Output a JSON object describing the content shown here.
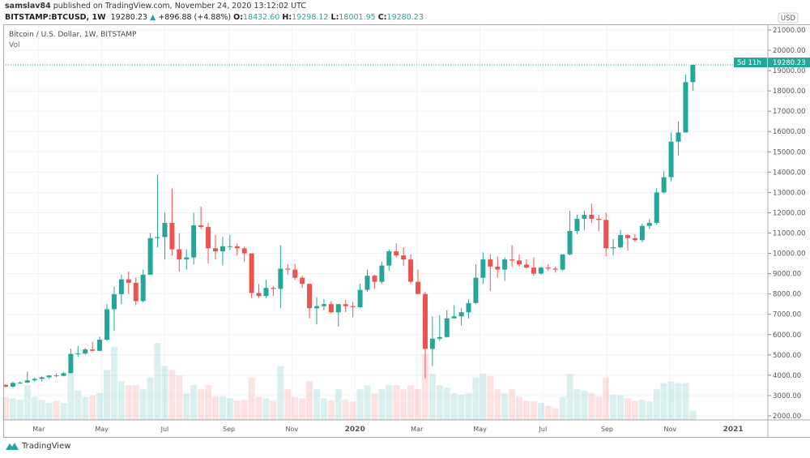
{
  "header": {
    "author": "samslav84",
    "published_text": "published on TradingView.com, November 24, 2020 13:12:02 UTC",
    "symbol": "BITSTAMP:BTCUSD, 1W",
    "last": "19280.23",
    "change": "+896.88 (+4.88%)",
    "o_label": "O:",
    "o": "18432.60",
    "h_label": "H:",
    "h": "19298.12",
    "l_label": "L:",
    "l": "18001.95",
    "c_label": "C:",
    "c": "19280.23"
  },
  "legend": {
    "title": "Bitcoin / U.S. Dollar, 1W, BITSTAMP",
    "vol": "Vol"
  },
  "footer": {
    "brand": "TradingView"
  },
  "chart_data": {
    "type": "candlestick",
    "interval": "1W",
    "currency": "USD",
    "colors": {
      "up": "#26a69a",
      "down": "#ef5350",
      "grid": "#f0f3fa"
    },
    "grid": true,
    "y_axis": {
      "side": "right",
      "range": [
        2000,
        21000
      ],
      "ticks": [
        2000,
        3000,
        4000,
        5000,
        6000,
        7000,
        8000,
        9000,
        10000,
        11000,
        12000,
        13000,
        14000,
        15000,
        16000,
        17000,
        18000,
        19000,
        20000,
        21000
      ]
    },
    "last_price_label": "19280.23",
    "countdown_label": "5d 11h",
    "x_ticks": [
      {
        "date": "2019-03-01",
        "label": "Mar"
      },
      {
        "date": "2019-05-01",
        "label": "May"
      },
      {
        "date": "2019-07-01",
        "label": "Jul"
      },
      {
        "date": "2019-09-01",
        "label": "Sep"
      },
      {
        "date": "2019-11-01",
        "label": "Nov"
      },
      {
        "date": "2020-01-01",
        "label": "2020"
      },
      {
        "date": "2020-03-01",
        "label": "Mar"
      },
      {
        "date": "2020-05-01",
        "label": "May"
      },
      {
        "date": "2020-07-01",
        "label": "Jul"
      },
      {
        "date": "2020-09-01",
        "label": "Sep"
      },
      {
        "date": "2020-11-01",
        "label": "Nov"
      },
      {
        "date": "2021-01-01",
        "label": "2021"
      }
    ],
    "columns": [
      "week",
      "open",
      "high",
      "low",
      "close",
      "volume_relative"
    ],
    "candles": [
      [
        "2019-01-28",
        3530,
        3560,
        3400,
        3440,
        30
      ],
      [
        "2019-02-04",
        3440,
        3680,
        3380,
        3620,
        28
      ],
      [
        "2019-02-11",
        3620,
        3700,
        3560,
        3640,
        26
      ],
      [
        "2019-02-18",
        3640,
        4180,
        3600,
        3750,
        45
      ],
      [
        "2019-02-25",
        3750,
        3900,
        3680,
        3820,
        30
      ],
      [
        "2019-03-04",
        3820,
        3950,
        3700,
        3900,
        26
      ],
      [
        "2019-03-11",
        3900,
        4000,
        3830,
        3990,
        22
      ],
      [
        "2019-03-18",
        3990,
        4080,
        3900,
        3970,
        25
      ],
      [
        "2019-03-25",
        3970,
        4150,
        3940,
        4100,
        22
      ],
      [
        "2019-04-01",
        4100,
        5300,
        4090,
        5050,
        60
      ],
      [
        "2019-04-08",
        5050,
        5450,
        4900,
        5070,
        38
      ],
      [
        "2019-04-15",
        5070,
        5350,
        5000,
        5270,
        30
      ],
      [
        "2019-04-22",
        5270,
        5650,
        5180,
        5200,
        32
      ],
      [
        "2019-04-29",
        5200,
        5900,
        5180,
        5750,
        35
      ],
      [
        "2019-05-06",
        5750,
        7500,
        5700,
        7250,
        65
      ],
      [
        "2019-05-13",
        7250,
        8350,
        6200,
        7990,
        95
      ],
      [
        "2019-05-20",
        7990,
        8950,
        7500,
        8720,
        50
      ],
      [
        "2019-05-27",
        8720,
        9100,
        8000,
        8550,
        45
      ],
      [
        "2019-06-03",
        8550,
        8800,
        7450,
        7650,
        45
      ],
      [
        "2019-06-10",
        7650,
        9200,
        7600,
        8950,
        40
      ],
      [
        "2019-06-17",
        8950,
        11000,
        8950,
        10750,
        55
      ],
      [
        "2019-06-24",
        10750,
        13880,
        10300,
        10800,
        100
      ],
      [
        "2019-07-01",
        10800,
        12000,
        9700,
        11500,
        70
      ],
      [
        "2019-07-08",
        11500,
        13200,
        9900,
        10200,
        65
      ],
      [
        "2019-07-15",
        10200,
        11000,
        9100,
        9700,
        58
      ],
      [
        "2019-07-22",
        9700,
        10200,
        9200,
        9800,
        35
      ],
      [
        "2019-07-29",
        9800,
        12000,
        9450,
        11380,
        45
      ],
      [
        "2019-08-05",
        11380,
        12300,
        11200,
        11300,
        40
      ],
      [
        "2019-08-12",
        11300,
        11500,
        9500,
        10250,
        45
      ],
      [
        "2019-08-19",
        10250,
        10900,
        9700,
        10100,
        30
      ],
      [
        "2019-08-26",
        10100,
        10800,
        9400,
        10350,
        30
      ],
      [
        "2019-09-02",
        10350,
        10900,
        10150,
        10350,
        28
      ],
      [
        "2019-09-09",
        10350,
        10480,
        9900,
        10250,
        25
      ],
      [
        "2019-09-16",
        10250,
        10350,
        9600,
        10000,
        26
      ],
      [
        "2019-09-23",
        10000,
        10000,
        7800,
        8050,
        55
      ],
      [
        "2019-09-30",
        8050,
        8500,
        7800,
        7900,
        30
      ],
      [
        "2019-10-07",
        7900,
        8700,
        7800,
        8300,
        28
      ],
      [
        "2019-10-14",
        8300,
        8400,
        7900,
        8250,
        25
      ],
      [
        "2019-10-21",
        8250,
        10400,
        7300,
        9250,
        70
      ],
      [
        "2019-10-28",
        9250,
        9450,
        8950,
        9200,
        40
      ],
      [
        "2019-11-04",
        9200,
        9500,
        8700,
        8800,
        30
      ],
      [
        "2019-11-11",
        8800,
        8900,
        8300,
        8500,
        28
      ],
      [
        "2019-11-18",
        8500,
        8500,
        6800,
        7300,
        50
      ],
      [
        "2019-11-25",
        7300,
        7850,
        6500,
        7400,
        40
      ],
      [
        "2019-12-02",
        7400,
        7750,
        7200,
        7500,
        28
      ],
      [
        "2019-12-09",
        7500,
        7650,
        7050,
        7100,
        25
      ],
      [
        "2019-12-16",
        7100,
        7500,
        6400,
        7500,
        40
      ],
      [
        "2019-12-23",
        7500,
        7700,
        7100,
        7400,
        26
      ],
      [
        "2019-12-30",
        7400,
        7600,
        6850,
        7350,
        24
      ],
      [
        "2020-01-06",
        7350,
        8500,
        7300,
        8200,
        40
      ],
      [
        "2020-01-13",
        8200,
        9200,
        8100,
        8900,
        45
      ],
      [
        "2020-01-20",
        8900,
        8950,
        8250,
        8600,
        35
      ],
      [
        "2020-01-27",
        8600,
        9600,
        8500,
        9400,
        40
      ],
      [
        "2020-02-03",
        9400,
        10200,
        9150,
        10100,
        45
      ],
      [
        "2020-02-10",
        10100,
        10500,
        9800,
        9900,
        45
      ],
      [
        "2020-02-17",
        9900,
        10300,
        9400,
        9700,
        40
      ],
      [
        "2020-02-24",
        9700,
        9950,
        8500,
        8600,
        45
      ],
      [
        "2020-03-02",
        8600,
        9200,
        8000,
        8000,
        40
      ],
      [
        "2020-03-09",
        8000,
        8100,
        3850,
        5300,
        85
      ],
      [
        "2020-03-16",
        5300,
        6900,
        4450,
        5800,
        60
      ],
      [
        "2020-03-23",
        5800,
        6950,
        5700,
        5880,
        45
      ],
      [
        "2020-03-30",
        5880,
        7200,
        5850,
        6800,
        42
      ],
      [
        "2020-04-06",
        6800,
        7450,
        6800,
        6900,
        35
      ],
      [
        "2020-04-13",
        6900,
        7300,
        6450,
        7100,
        33
      ],
      [
        "2020-04-20",
        7100,
        7750,
        6800,
        7550,
        35
      ],
      [
        "2020-04-27",
        7550,
        9450,
        7500,
        8800,
        55
      ],
      [
        "2020-05-04",
        8800,
        10050,
        8500,
        9700,
        60
      ],
      [
        "2020-05-11",
        9700,
        9950,
        8150,
        9350,
        57
      ],
      [
        "2020-05-18",
        9350,
        9850,
        8800,
        9200,
        40
      ],
      [
        "2020-05-25",
        9200,
        9800,
        8650,
        9700,
        35
      ],
      [
        "2020-06-01",
        9700,
        10400,
        9350,
        9650,
        40
      ],
      [
        "2020-06-08",
        9650,
        9950,
        9350,
        9450,
        30
      ],
      [
        "2020-06-15",
        9450,
        9700,
        9250,
        9300,
        25
      ],
      [
        "2020-06-22",
        9300,
        9800,
        8900,
        9000,
        24
      ],
      [
        "2020-06-29",
        9000,
        9350,
        8950,
        9300,
        22
      ],
      [
        "2020-07-06",
        9300,
        9450,
        9150,
        9250,
        18
      ],
      [
        "2020-07-13",
        9250,
        9350,
        9050,
        9200,
        15
      ],
      [
        "2020-07-20",
        9200,
        9950,
        9150,
        9950,
        30
      ],
      [
        "2020-07-27",
        9950,
        12100,
        9900,
        11100,
        60
      ],
      [
        "2020-08-03",
        11100,
        11900,
        10950,
        11700,
        40
      ],
      [
        "2020-08-10",
        11700,
        12100,
        11150,
        11900,
        38
      ],
      [
        "2020-08-17",
        11900,
        12450,
        11500,
        11700,
        35
      ],
      [
        "2020-08-24",
        11700,
        11900,
        11100,
        11650,
        30
      ],
      [
        "2020-08-31",
        11650,
        12000,
        9850,
        10250,
        55
      ],
      [
        "2020-09-07",
        10250,
        10700,
        9900,
        10300,
        33
      ],
      [
        "2020-09-14",
        10300,
        11150,
        10250,
        10900,
        32
      ],
      [
        "2020-09-21",
        10900,
        10950,
        10150,
        10750,
        28
      ],
      [
        "2020-09-28",
        10750,
        10950,
        10550,
        10650,
        25
      ],
      [
        "2020-10-05",
        10650,
        11450,
        10550,
        11350,
        26
      ],
      [
        "2020-10-12",
        11350,
        11700,
        11200,
        11500,
        24
      ],
      [
        "2020-10-19",
        11500,
        13200,
        11400,
        13000,
        40
      ],
      [
        "2020-10-26",
        13000,
        14050,
        12950,
        13750,
        48
      ],
      [
        "2020-11-02",
        13750,
        15950,
        13550,
        15500,
        50
      ],
      [
        "2020-11-09",
        15500,
        16500,
        14800,
        15950,
        48
      ],
      [
        "2020-11-16",
        15950,
        18800,
        15950,
        18432.6,
        48
      ],
      [
        "2020-11-23",
        18432.6,
        19298.12,
        18001.95,
        19280.23,
        12
      ]
    ]
  }
}
